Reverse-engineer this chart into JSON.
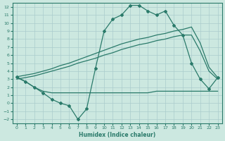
{
  "xlabel": "Humidex (Indice chaleur)",
  "bg_color": "#cce8e0",
  "grid_color": "#aacccc",
  "line_color": "#2a7a6a",
  "xlim": [
    -0.5,
    23.5
  ],
  "ylim": [
    -2.5,
    12.5
  ],
  "xticks": [
    0,
    1,
    2,
    3,
    4,
    5,
    6,
    7,
    8,
    9,
    10,
    11,
    12,
    13,
    14,
    15,
    16,
    17,
    18,
    19,
    20,
    21,
    22,
    23
  ],
  "yticks": [
    -2,
    -1,
    0,
    1,
    2,
    3,
    4,
    5,
    6,
    7,
    8,
    9,
    10,
    11,
    12
  ],
  "line_upper_x": [
    0,
    1,
    2,
    3,
    4,
    5,
    6,
    7,
    8,
    9,
    10,
    11,
    12,
    13,
    14,
    15,
    16,
    17,
    18,
    19,
    20,
    21,
    22,
    23
  ],
  "line_upper_y": [
    3.3,
    3.5,
    3.7,
    4.0,
    4.3,
    4.7,
    5.0,
    5.4,
    5.8,
    6.2,
    6.6,
    7.0,
    7.4,
    7.7,
    8.0,
    8.2,
    8.5,
    8.7,
    9.0,
    9.2,
    9.5,
    7.5,
    4.5,
    3.2
  ],
  "line_mid_x": [
    0,
    1,
    2,
    3,
    4,
    5,
    6,
    7,
    8,
    9,
    10,
    11,
    12,
    13,
    14,
    15,
    16,
    17,
    18,
    19,
    20,
    21,
    22,
    23
  ],
  "line_mid_y": [
    3.0,
    3.2,
    3.4,
    3.7,
    4.0,
    4.3,
    4.6,
    5.0,
    5.3,
    5.6,
    6.0,
    6.3,
    6.7,
    7.0,
    7.3,
    7.5,
    7.8,
    8.0,
    8.3,
    8.5,
    8.5,
    6.5,
    4.0,
    3.0
  ],
  "line_flat_x": [
    0,
    1,
    2,
    3,
    4,
    5,
    6,
    7,
    8,
    9,
    10,
    11,
    12,
    13,
    14,
    15,
    16,
    17,
    18,
    19,
    20,
    21,
    22,
    23
  ],
  "line_flat_y": [
    3.2,
    2.7,
    2.0,
    1.5,
    1.3,
    1.3,
    1.3,
    1.3,
    1.3,
    1.3,
    1.3,
    1.3,
    1.3,
    1.3,
    1.3,
    1.3,
    1.5,
    1.5,
    1.5,
    1.5,
    1.5,
    1.5,
    1.5,
    1.5
  ],
  "line_curvy_x": [
    0,
    1,
    2,
    3,
    4,
    5,
    6,
    7,
    8,
    9,
    10,
    11,
    12,
    13,
    14,
    15,
    16,
    17,
    18,
    19,
    20,
    21,
    22,
    23
  ],
  "line_curvy_y": [
    3.3,
    2.7,
    2.0,
    1.3,
    0.5,
    0.0,
    -0.3,
    -2.0,
    -0.7,
    4.3,
    9.0,
    10.5,
    11.0,
    12.2,
    12.2,
    11.5,
    11.0,
    11.5,
    9.7,
    8.5,
    5.0,
    3.0,
    1.8,
    3.2
  ]
}
